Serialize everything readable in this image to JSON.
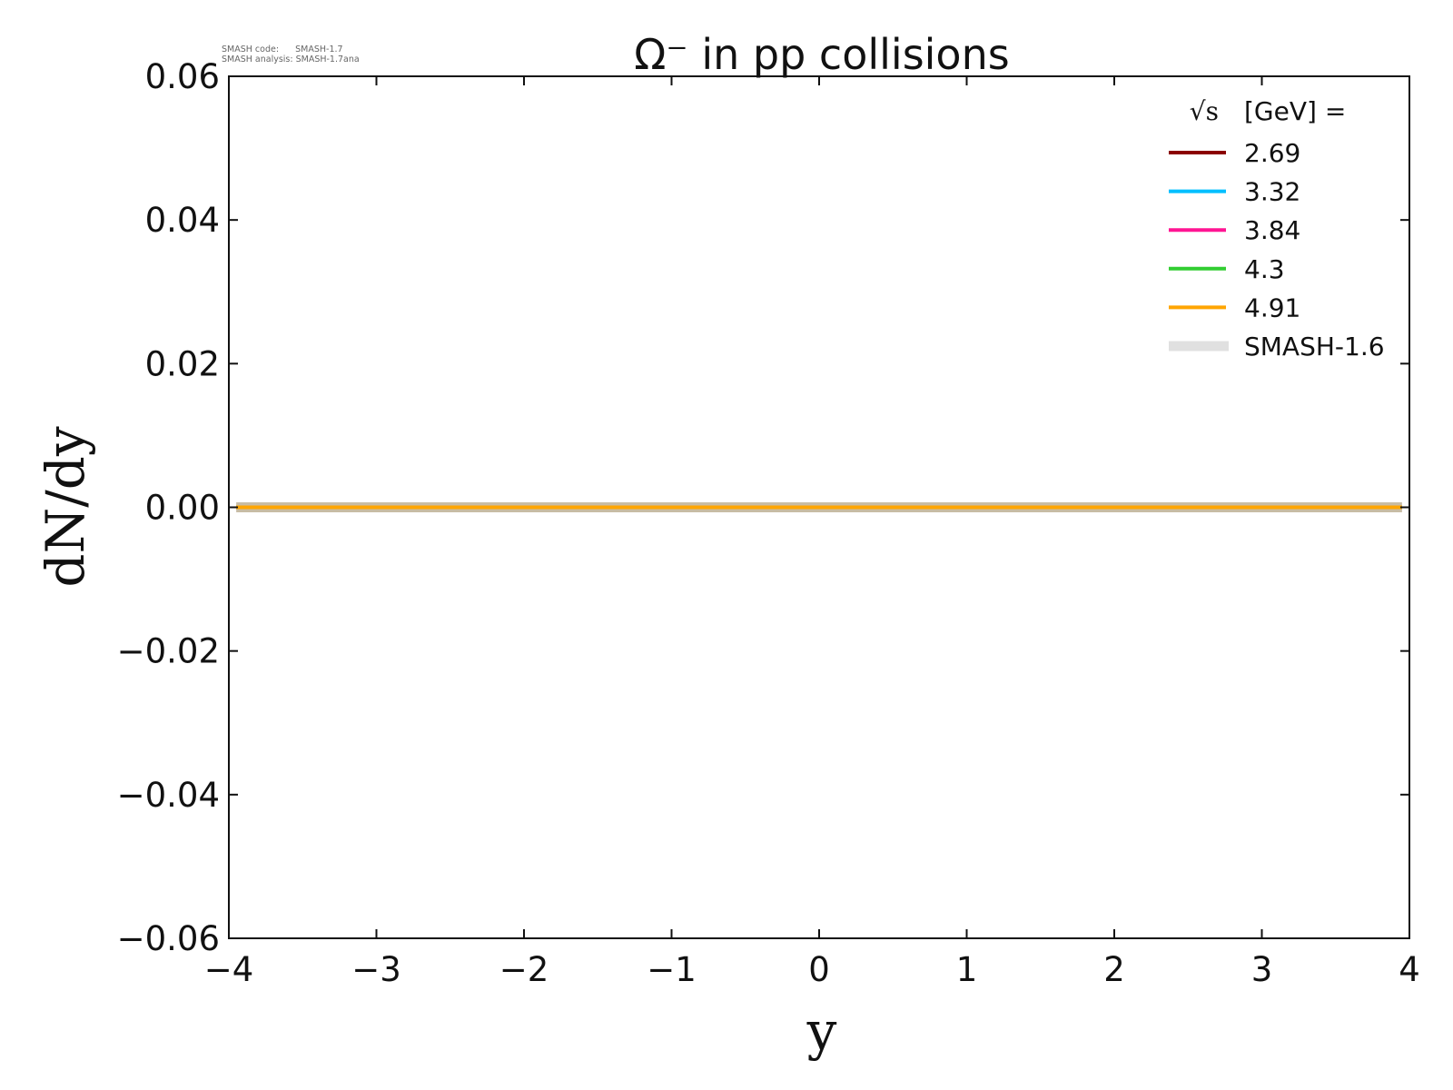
{
  "meta": {
    "code_label": "SMASH code:      SMASH-1.7",
    "analysis_label": "SMASH analysis: SMASH-1.7ana"
  },
  "chart_data": {
    "type": "line",
    "title": "Ω⁻ in pp collisions",
    "xlabel": "y",
    "ylabel": "dN/dy",
    "xlim": [
      -4,
      4
    ],
    "ylim": [
      -0.06,
      0.06
    ],
    "xticks": [
      -4,
      -3,
      -2,
      -1,
      0,
      1,
      2,
      3,
      4
    ],
    "xtick_labels": [
      "−4",
      "−3",
      "−2",
      "−1",
      "0",
      "1",
      "2",
      "3",
      "4"
    ],
    "yticks": [
      0.06,
      0.04,
      0.02,
      0.0,
      -0.02,
      -0.04,
      -0.06
    ],
    "ytick_labels": [
      "0.06",
      "0.04",
      "0.02",
      "0.00",
      "−0.02",
      "−0.04",
      "−0.06"
    ],
    "grid": false,
    "legend": {
      "placement": "top-right",
      "title_sqrt": "√s",
      "title": "[GeV] ="
    },
    "series": [
      {
        "name": "SMASH-1.6",
        "color": "#e0e0e0",
        "reference": true,
        "x": [
          -3.95,
          3.95
        ],
        "y": [
          0,
          0
        ]
      },
      {
        "name": "2.69",
        "color": "#8b0000",
        "x": [
          -3.95,
          3.95
        ],
        "y": [
          0,
          0
        ]
      },
      {
        "name": "3.32",
        "color": "#00bfff",
        "x": [
          -3.95,
          3.95
        ],
        "y": [
          0,
          0
        ]
      },
      {
        "name": "3.84",
        "color": "#ff1493",
        "x": [
          -3.95,
          3.95
        ],
        "y": [
          0,
          0
        ]
      },
      {
        "name": "4.3",
        "color": "#32cd32",
        "x": [
          -3.95,
          3.95
        ],
        "y": [
          0,
          0
        ]
      },
      {
        "name": "4.91",
        "color": "#ffa500",
        "x": [
          -3.95,
          3.95
        ],
        "y": [
          0,
          0
        ]
      }
    ]
  }
}
